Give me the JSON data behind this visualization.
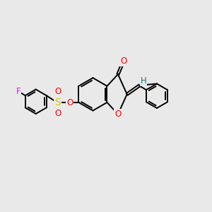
{
  "bg_color": "#e9e9e9",
  "bond_color": "#000000",
  "bond_width": 1.4,
  "atom_colors": {
    "O": "#ff0000",
    "S": "#cccc00",
    "F": "#ff00ff",
    "H": "#008080"
  },
  "font_size": 8.5
}
